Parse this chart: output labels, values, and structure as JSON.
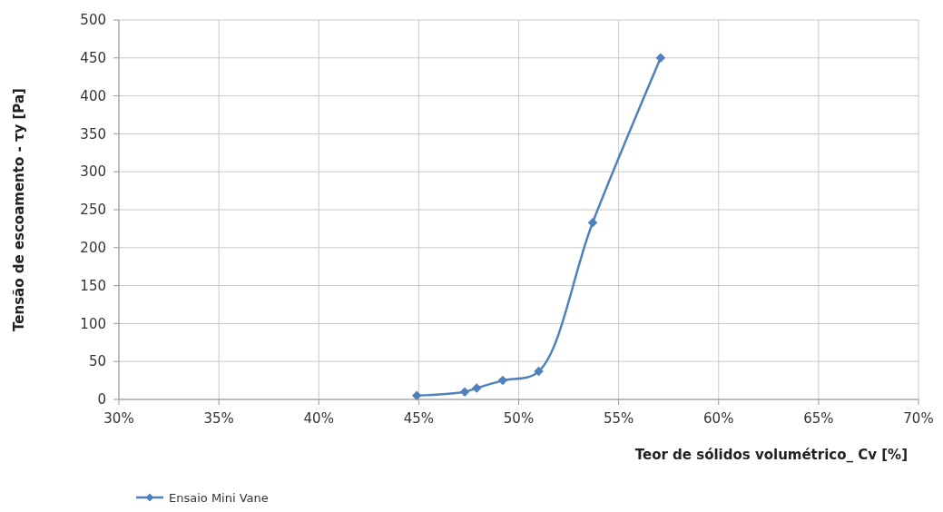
{
  "chart_data": {
    "type": "line",
    "xlabel": "Teor de sólidos volumétrico_ Cv [%]",
    "ylabel": "Tensão de escoamento - τy [Pa]",
    "xlim": [
      30,
      70
    ],
    "xticks": [
      {
        "value": 30,
        "label": "30%"
      },
      {
        "value": 35,
        "label": "35%"
      },
      {
        "value": 40,
        "label": "40%"
      },
      {
        "value": 45,
        "label": "45%"
      },
      {
        "value": 50,
        "label": "50%"
      },
      {
        "value": 55,
        "label": "55%"
      },
      {
        "value": 60,
        "label": "60%"
      },
      {
        "value": 65,
        "label": "65%"
      },
      {
        "value": 70,
        "label": "70%"
      }
    ],
    "ylim": [
      0,
      500
    ],
    "yticks": [
      0,
      50,
      100,
      150,
      200,
      250,
      300,
      350,
      400,
      450,
      500
    ],
    "grid": true,
    "legend": "bottom left",
    "marker": "diamond",
    "line_style": "solid",
    "series": [
      {
        "name": "Ensaio Mini Vane",
        "color": "#4f81bd",
        "x": [
          44.9,
          47.3,
          47.9,
          49.2,
          51.0,
          53.7,
          57.1
        ],
        "values": [
          5,
          10,
          15,
          25,
          37,
          233,
          450
        ]
      }
    ]
  }
}
